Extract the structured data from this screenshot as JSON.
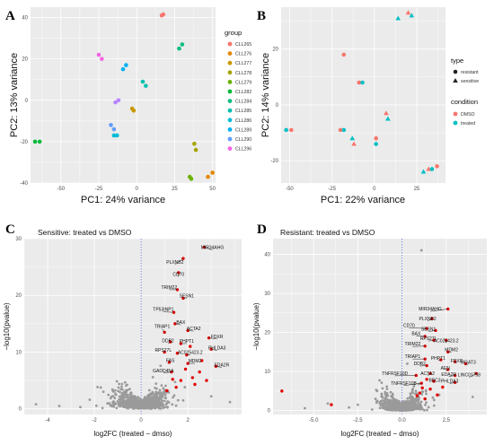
{
  "panels": {
    "A": "A",
    "B": "B",
    "C": "C",
    "D": "D"
  },
  "chart_data": [
    {
      "id": "A",
      "type": "scatter",
      "xlabel": "PC1: 24% variance",
      "ylabel": "PC2: 13% variance",
      "xlim": [
        -70,
        52
      ],
      "ylim": [
        -40,
        45
      ],
      "xticks": [
        -50,
        -25,
        0,
        25,
        50
      ],
      "yticks": [
        -40,
        -20,
        0,
        20,
        40
      ],
      "grid": true,
      "legend": {
        "title": "group",
        "placement": "right"
      },
      "series": [
        {
          "name": "CLL265",
          "color": "#F8766D",
          "points": [
            [
              16.5,
              41
            ],
            [
              17.5,
              41.5
            ]
          ]
        },
        {
          "name": "CLL276",
          "color": "#E58700",
          "points": [
            [
              47,
              -37
            ],
            [
              50,
              -35
            ]
          ]
        },
        {
          "name": "CLL277",
          "color": "#C99800",
          "points": [
            [
              -3,
              -4
            ],
            [
              -2,
              -5
            ]
          ]
        },
        {
          "name": "CLL278",
          "color": "#A3A500",
          "points": [
            [
              38,
              -21
            ],
            [
              39,
              -24
            ]
          ]
        },
        {
          "name": "CLL279",
          "color": "#6BB100",
          "points": [
            [
              35,
              -37
            ],
            [
              36,
              -38
            ]
          ]
        },
        {
          "name": "CLL282",
          "color": "#00BA38",
          "points": [
            [
              -67,
              -20
            ],
            [
              -64,
              -20
            ]
          ]
        },
        {
          "name": "CLL284",
          "color": "#00BF7D",
          "points": [
            [
              28,
              25
            ],
            [
              30,
              27
            ]
          ]
        },
        {
          "name": "CLL285",
          "color": "#00C0AF",
          "points": [
            [
              4,
              9
            ],
            [
              6,
              7
            ]
          ]
        },
        {
          "name": "CLL286",
          "color": "#00BCD8",
          "points": [
            [
              -15,
              -17
            ],
            [
              -13,
              -17
            ]
          ]
        },
        {
          "name": "CLL289",
          "color": "#00B0F6",
          "points": [
            [
              -9,
              15
            ],
            [
              -7,
              17
            ]
          ]
        },
        {
          "name": "CLL290",
          "color": "#619CFF",
          "points": [
            [
              -17,
              -12
            ],
            [
              -15,
              -14
            ]
          ]
        },
        {
          "name": "CLL296",
          "color": "#F564E3",
          "points": [
            [
              -25,
              22
            ],
            [
              -23,
              20
            ]
          ]
        },
        {
          "name": "",
          "color": "#B983FF",
          "points": [
            [
              -14,
              -1
            ],
            [
              -12,
              0
            ]
          ]
        }
      ]
    },
    {
      "id": "B",
      "type": "scatter",
      "xlabel": "PC1: 22% variance",
      "ylabel": "PC2: 14% variance",
      "xlim": [
        -55,
        42
      ],
      "ylim": [
        -28,
        35
      ],
      "xticks": [
        -50,
        -25,
        0,
        25
      ],
      "yticks": [
        -20,
        0,
        20
      ],
      "grid": true,
      "legend": {
        "placement": "right",
        "type_title": "type",
        "type_items": [
          {
            "label": "resistant",
            "shape": "circle"
          },
          {
            "label": "sensitive",
            "shape": "triangle"
          }
        ],
        "condition_title": "condition",
        "condition_items": [
          {
            "label": "DMSO",
            "color": "#F8766D"
          },
          {
            "label": "treated",
            "color": "#00BFC4"
          }
        ]
      },
      "series": [
        {
          "name": "DMSO",
          "color": "#F8766D",
          "points": [
            {
              "x": -49,
              "y": -9,
              "shape": "circle"
            },
            {
              "x": -18,
              "y": 18,
              "shape": "circle"
            },
            {
              "x": -9,
              "y": 8,
              "shape": "circle"
            },
            {
              "x": -20,
              "y": -9,
              "shape": "circle"
            },
            {
              "x": 1,
              "y": -12,
              "shape": "circle"
            },
            {
              "x": 37,
              "y": -22,
              "shape": "circle"
            },
            {
              "x": 20,
              "y": 33,
              "shape": "triangle"
            },
            {
              "x": 7,
              "y": -3,
              "shape": "triangle"
            },
            {
              "x": -12,
              "y": -14,
              "shape": "triangle"
            },
            {
              "x": 32,
              "y": -23,
              "shape": "triangle"
            }
          ]
        },
        {
          "name": "treated",
          "color": "#00BFC4",
          "points": [
            {
              "x": -52,
              "y": -9,
              "shape": "circle"
            },
            {
              "x": -7,
              "y": 8,
              "shape": "circle"
            },
            {
              "x": -18,
              "y": -9,
              "shape": "circle"
            },
            {
              "x": 1,
              "y": -14,
              "shape": "circle"
            },
            {
              "x": 34,
              "y": -23,
              "shape": "circle"
            },
            {
              "x": 14,
              "y": 31,
              "shape": "triangle"
            },
            {
              "x": 22,
              "y": 32,
              "shape": "triangle"
            },
            {
              "x": 8,
              "y": -5,
              "shape": "triangle"
            },
            {
              "x": -13,
              "y": -12,
              "shape": "triangle"
            },
            {
              "x": 29,
              "y": -24,
              "shape": "triangle"
            }
          ]
        }
      ]
    },
    {
      "id": "C",
      "type": "scatter",
      "title": "Sensitive: treated vs DMSO",
      "xlabel": "log2FC (treated − dmso)",
      "ylabel": "−log10(pvalue)",
      "xlim": [
        -5,
        4.3
      ],
      "ylim": [
        -1,
        30
      ],
      "xticks": [
        -4,
        -2,
        0,
        2
      ],
      "yticks": [
        0,
        10,
        20,
        30
      ],
      "grid": true,
      "labeled_genes": [
        {
          "label": "MIR34AHG",
          "x": 2.7,
          "y": 28.5,
          "lx": 3.05,
          "ly": 28
        },
        {
          "label": "PLXNB2",
          "x": 1.8,
          "y": 26.5,
          "lx": 1.45,
          "ly": 25.4
        },
        {
          "label": "CD70",
          "x": 1.6,
          "y": 24,
          "lx": 1.6,
          "ly": 23.3
        },
        {
          "label": "TRIM22",
          "x": 1.55,
          "y": 21,
          "lx": 1.2,
          "ly": 21
        },
        {
          "label": "SESN1",
          "x": 1.8,
          "y": 19.5,
          "lx": 1.95,
          "ly": 19.5
        },
        {
          "label": "TP53INP1",
          "x": 1.4,
          "y": 17,
          "lx": 0.95,
          "ly": 17.1
        },
        {
          "label": "BAX",
          "x": 1.45,
          "y": 15,
          "lx": 1.7,
          "ly": 14.8
        },
        {
          "label": "ACTA2",
          "x": 2.0,
          "y": 13.8,
          "lx": 2.25,
          "ly": 13.7
        },
        {
          "label": "TRIAP1",
          "x": 1.0,
          "y": 13.5,
          "lx": 0.9,
          "ly": 14.1
        },
        {
          "label": "FDXR",
          "x": 2.9,
          "y": 12.5,
          "lx": 3.25,
          "ly": 12.3
        },
        {
          "label": "DDB2",
          "x": 1.25,
          "y": 11.8,
          "lx": 1.15,
          "ly": 11.6
        },
        {
          "label": "PHPT1",
          "x": 1.7,
          "y": 11.5,
          "lx": 1.95,
          "ly": 11.5
        },
        {
          "label": "PHLDA3",
          "x": 3.0,
          "y": 10.5,
          "lx": 3.25,
          "ly": 10.3
        },
        {
          "label": "RPS27L",
          "x": 1.0,
          "y": 10,
          "lx": 0.95,
          "ly": 9.9
        },
        {
          "label": "AC025423.2",
          "x": 1.95,
          "y": 9.5,
          "lx": 2.1,
          "ly": 9.5
        },
        {
          "label": "FAS",
          "x": 1.2,
          "y": 8.2,
          "lx": 1.25,
          "ly": 8.1
        },
        {
          "label": "MDM2",
          "x": 2.0,
          "y": 8,
          "lx": 2.3,
          "ly": 8.0
        },
        {
          "label": "EDA2R",
          "x": 3.2,
          "y": 7.5,
          "lx": 3.45,
          "ly": 7.3
        },
        {
          "label": "GADD45A",
          "x": 1.3,
          "y": 6.5,
          "lx": 0.95,
          "ly": 6.3
        }
      ],
      "extra_red": [
        [
          2.2,
          5.5
        ],
        [
          2.5,
          6.5
        ],
        [
          1.7,
          5.0
        ],
        [
          2.8,
          5.0
        ],
        [
          1.1,
          3.2
        ],
        [
          1.5,
          3.8
        ],
        [
          2.3,
          4.3
        ],
        [
          1.9,
          7.0
        ],
        [
          2.6,
          8.5
        ],
        [
          1.35,
          5.2
        ],
        [
          2.1,
          11.0
        ],
        [
          1.55,
          9.8
        ]
      ]
    },
    {
      "id": "D",
      "type": "scatter",
      "title": "Resistant: treated vs DMSO",
      "xlabel": "log2FC (treated − dmso)",
      "ylabel": "−log10(pvalue)",
      "xlim": [
        -7.3,
        4.8
      ],
      "ylim": [
        -1,
        44
      ],
      "xticks": [
        -5.0,
        -2.5,
        0.0,
        2.5
      ],
      "yticks": [
        0,
        10,
        20,
        30,
        40
      ],
      "grid": true,
      "labeled_genes": [
        {
          "label": "MIR34AHG",
          "x": 2.6,
          "y": 26,
          "lx": 1.6,
          "ly": 25.4
        },
        {
          "label": "PLXNB2",
          "x": 1.7,
          "y": 23.5,
          "lx": 1.45,
          "ly": 22.9
        },
        {
          "label": "CD70",
          "x": 1.4,
          "y": 21,
          "lx": 0.4,
          "ly": 21.2
        },
        {
          "label": "SESN1",
          "x": 1.9,
          "y": 20.5,
          "lx": 1.5,
          "ly": 20.2
        },
        {
          "label": "BAX",
          "x": 1.3,
          "y": 19,
          "lx": 0.8,
          "ly": 19.1
        },
        {
          "label": "RPS27L",
          "x": 1.8,
          "y": 18,
          "lx": 1.5,
          "ly": 17.8
        },
        {
          "label": "AC025423.2",
          "x": 2.5,
          "y": 18,
          "lx": 2.5,
          "ly": 17.3
        },
        {
          "label": "TRIM22",
          "x": 1.3,
          "y": 16.5,
          "lx": 0.6,
          "ly": 16.4
        },
        {
          "label": "MDM2",
          "x": 2.6,
          "y": 15,
          "lx": 2.8,
          "ly": 15.0
        },
        {
          "label": "TRIAP1",
          "x": 1.3,
          "y": 13.2,
          "lx": 0.6,
          "ly": 13.2
        },
        {
          "label": "PHPT1",
          "x": 2.2,
          "y": 13,
          "lx": 2.05,
          "ly": 12.8
        },
        {
          "label": "FDXR",
          "x": 3.0,
          "y": 12.5,
          "lx": 3.1,
          "ly": 12.1
        },
        {
          "label": "MGAT3",
          "x": 3.6,
          "y": 12,
          "lx": 3.75,
          "ly": 11.7
        },
        {
          "label": "DDB2",
          "x": 1.4,
          "y": 11.5,
          "lx": 1.0,
          "ly": 11.4
        },
        {
          "label": "AEN",
          "x": 2.6,
          "y": 10.5,
          "lx": 2.45,
          "ly": 10.2
        },
        {
          "label": "ACTA2",
          "x": 1.6,
          "y": 9.5,
          "lx": 1.45,
          "ly": 8.9
        },
        {
          "label": "EDA2R",
          "x": 3.0,
          "y": 9,
          "lx": 2.65,
          "ly": 8.7
        },
        {
          "label": "LINC01758",
          "x": 4.2,
          "y": 9.5,
          "lx": 3.8,
          "ly": 8.5
        },
        {
          "label": "TNFRSF10D",
          "x": 0.8,
          "y": 9,
          "lx": -0.4,
          "ly": 8.9
        },
        {
          "label": "BBC3",
          "x": 1.8,
          "y": 7.5,
          "lx": 1.85,
          "ly": 7.2
        },
        {
          "label": "PHLDA3",
          "x": 3.0,
          "y": 7.2,
          "lx": 2.7,
          "ly": 6.9
        },
        {
          "label": "TNFRSF10B",
          "x": 1.1,
          "y": 7,
          "lx": 0.1,
          "ly": 6.4
        }
      ],
      "extra_red": [
        [
          -6.8,
          5.0
        ],
        [
          -4.0,
          1.5
        ],
        [
          1.0,
          4.5
        ],
        [
          1.3,
          3.0
        ],
        [
          1.6,
          5.5
        ],
        [
          2.0,
          4.0
        ],
        [
          1.15,
          5.8
        ],
        [
          0.85,
          3.8
        ],
        [
          2.3,
          6.0
        ],
        [
          1.4,
          8.0
        ]
      ]
    }
  ]
}
